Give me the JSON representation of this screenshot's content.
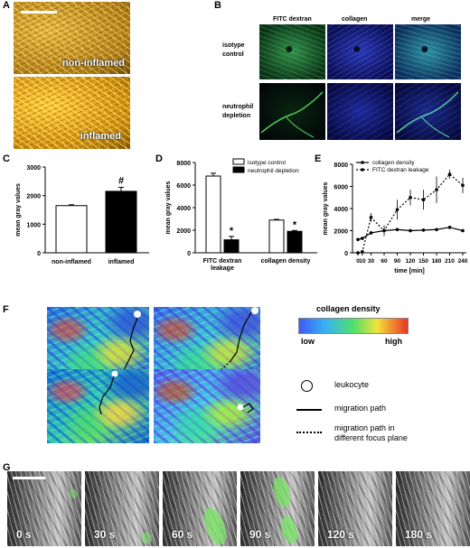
{
  "figure": {
    "panel_labels": {
      "A": "A",
      "B": "B",
      "C": "C",
      "D": "D",
      "E": "E",
      "F": "F",
      "G": "G"
    },
    "panel_a": {
      "top_label": "non-inflamed",
      "bottom_label": "inflamed"
    },
    "panel_b": {
      "columns": [
        "FITC dextran",
        "collagen",
        "merge"
      ],
      "rows": [
        "isotype\ncontrol",
        "neutrophil\ndepletion"
      ]
    },
    "panel_f": {
      "colorbar_title": "collagen density",
      "colorbar_low": "low",
      "colorbar_high": "high",
      "legend": [
        {
          "icon": "circle-icon",
          "text": "leukocyte"
        },
        {
          "icon": "solid-line-icon",
          "text": "migration path"
        },
        {
          "icon": "dotted-line-icon",
          "text": "migration path in\ndifferent focus plane"
        }
      ]
    },
    "panel_g": {
      "timepoints": [
        "0 s",
        "30 s",
        "60 s",
        "90 s",
        "120 s",
        "180 s"
      ]
    }
  },
  "chart_data": [
    {
      "id": "C",
      "type": "bar",
      "ylabel": "mean gray values",
      "ylim": [
        0,
        3000
      ],
      "yticks": [
        0,
        1000,
        2000,
        3000
      ],
      "categories": [
        "non-inflamed",
        "inflamed"
      ],
      "values": [
        1650,
        2150
      ],
      "errors": [
        30,
        140
      ],
      "colors": [
        "#ffffff",
        "#000000"
      ],
      "annotations": [
        "",
        "#"
      ]
    },
    {
      "id": "D",
      "type": "bar",
      "ylabel": "mean gray values",
      "ylim": [
        0,
        8000
      ],
      "yticks": [
        0,
        2000,
        4000,
        6000,
        8000
      ],
      "categories": [
        "FITC dextran\nleakage",
        "collagen density"
      ],
      "series": [
        {
          "name": "isotype control",
          "values": [
            6800,
            2900
          ],
          "errors": [
            250,
            60
          ],
          "color": "#ffffff"
        },
        {
          "name": "neutrophil depletion",
          "values": [
            1150,
            1900
          ],
          "errors": [
            300,
            80
          ],
          "color": "#000000"
        }
      ],
      "annotations": [
        "*",
        "*"
      ],
      "legend": "top-right"
    },
    {
      "id": "E",
      "type": "line",
      "ylabel": "mean gray values",
      "xlabel": "time [min]",
      "ylim": [
        0,
        8000
      ],
      "yticks": [
        0,
        2000,
        4000,
        6000,
        8000
      ],
      "xticks": [
        0,
        10,
        30,
        60,
        90,
        120,
        150,
        180,
        210,
        240
      ],
      "series": [
        {
          "name": "collagen density",
          "style": "solid",
          "x": [
            0,
            10,
            30,
            60,
            90,
            120,
            150,
            180,
            210,
            240
          ],
          "y": [
            1200,
            1300,
            1800,
            2000,
            2100,
            2000,
            2050,
            2100,
            2300,
            2000
          ],
          "errors": [
            100,
            100,
            150,
            150,
            150,
            150,
            150,
            150,
            150,
            150
          ]
        },
        {
          "name": "FITC dextran leakage",
          "style": "dotted",
          "x": [
            0,
            10,
            30,
            60,
            90,
            120,
            150,
            180,
            210,
            240
          ],
          "y": [
            0,
            100,
            3200,
            2000,
            3900,
            5000,
            4800,
            5700,
            7100,
            6100
          ],
          "errors": [
            50,
            100,
            400,
            500,
            900,
            700,
            900,
            1200,
            400,
            700
          ]
        }
      ],
      "legend": "top-left"
    }
  ]
}
